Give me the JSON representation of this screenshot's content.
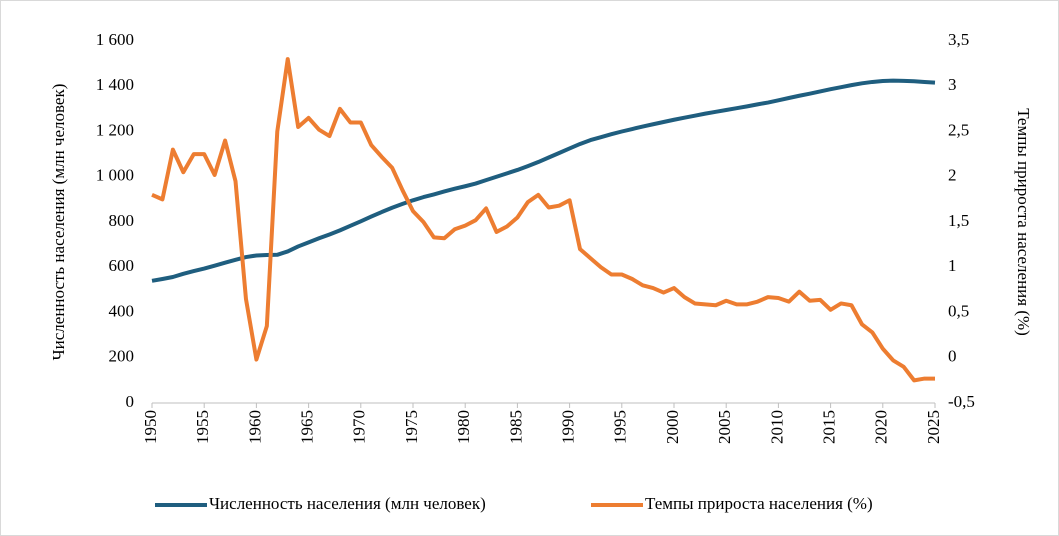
{
  "chart_data": {
    "type": "line",
    "y_label": "Численность населения (млн человек)",
    "y2_label": "Темпы прироста населения (%)",
    "legend": "bottom",
    "grid": false,
    "x": [
      1950,
      1951,
      1952,
      1953,
      1954,
      1955,
      1956,
      1957,
      1958,
      1959,
      1960,
      1961,
      1962,
      1963,
      1964,
      1965,
      1966,
      1967,
      1968,
      1969,
      1970,
      1971,
      1972,
      1973,
      1974,
      1975,
      1976,
      1977,
      1978,
      1979,
      1980,
      1981,
      1982,
      1983,
      1984,
      1985,
      1986,
      1987,
      1988,
      1989,
      1990,
      1991,
      1992,
      1993,
      1994,
      1995,
      1996,
      1997,
      1998,
      1999,
      2000,
      2001,
      2002,
      2003,
      2004,
      2005,
      2006,
      2007,
      2008,
      2009,
      2010,
      2011,
      2012,
      2013,
      2014,
      2015,
      2016,
      2017,
      2018,
      2019,
      2020,
      2021,
      2022,
      2023,
      2024,
      2025
    ],
    "xlim": [
      1950,
      2025
    ],
    "xticks": [
      1950,
      1955,
      1960,
      1965,
      1970,
      1975,
      1980,
      1985,
      1990,
      1995,
      2000,
      2005,
      2010,
      2015,
      2020,
      2025
    ],
    "ylim": [
      0,
      1600
    ],
    "yticks": [
      0,
      200,
      400,
      600,
      800,
      {
        "value": 1000,
        "label": "1 000"
      },
      {
        "value": 1200,
        "label": "1 200"
      },
      {
        "value": 1400,
        "label": "1 400"
      },
      {
        "value": 1600,
        "label": "1 600"
      }
    ],
    "y2lim": [
      -0.5,
      3.5
    ],
    "y2ticks": [
      {
        "value": -0.5,
        "label": "-0,5"
      },
      0,
      {
        "value": 0.5,
        "label": "0,5"
      },
      1,
      {
        "value": 1.5,
        "label": "1,5"
      },
      2,
      {
        "value": 2.5,
        "label": "2,5"
      },
      3,
      {
        "value": 3.5,
        "label": "3,5"
      }
    ],
    "series": [
      {
        "name": "Численность населения (млн человек)",
        "color": "#1f5e7f",
        "axis": "y",
        "values": [
          540,
          548,
          557,
          571,
          583,
          594,
          607,
          620,
          633,
          645,
          652,
          654,
          655,
          670,
          692,
          710,
          728,
          745,
          763,
          783,
          803,
          824,
          844,
          863,
          880,
          896,
          910,
          922,
          935,
          947,
          958,
          970,
          985,
          1000,
          1015,
          1030,
          1047,
          1065,
          1085,
          1105,
          1125,
          1145,
          1162,
          1175,
          1188,
          1200,
          1211,
          1222,
          1232,
          1242,
          1252,
          1261,
          1270,
          1279,
          1287,
          1295,
          1303,
          1311,
          1320,
          1328,
          1338,
          1348,
          1358,
          1367,
          1377,
          1387,
          1396,
          1405,
          1413,
          1419,
          1423,
          1425,
          1424,
          1422,
          1419,
          1416
        ]
      },
      {
        "name": "Темпы прироста населения (%)",
        "color": "#ed7d31",
        "axis": "y2",
        "values": [
          1.8,
          1.75,
          2.3,
          2.05,
          2.25,
          2.25,
          2.02,
          2.4,
          1.95,
          0.65,
          -0.02,
          0.35,
          2.5,
          3.3,
          2.55,
          2.65,
          2.52,
          2.45,
          2.75,
          2.6,
          2.6,
          2.35,
          2.22,
          2.1,
          1.85,
          1.62,
          1.5,
          1.33,
          1.32,
          1.42,
          1.46,
          1.52,
          1.65,
          1.39,
          1.45,
          1.55,
          1.72,
          1.8,
          1.66,
          1.68,
          1.74,
          1.2,
          1.1,
          1.0,
          0.92,
          0.92,
          0.87,
          0.8,
          0.77,
          0.72,
          0.77,
          0.67,
          0.6,
          0.59,
          0.58,
          0.63,
          0.59,
          0.59,
          0.62,
          0.67,
          0.66,
          0.62,
          0.73,
          0.63,
          0.64,
          0.53,
          0.6,
          0.58,
          0.37,
          0.28,
          0.1,
          -0.03,
          -0.1,
          -0.25,
          -0.23,
          -0.23
        ]
      }
    ]
  }
}
